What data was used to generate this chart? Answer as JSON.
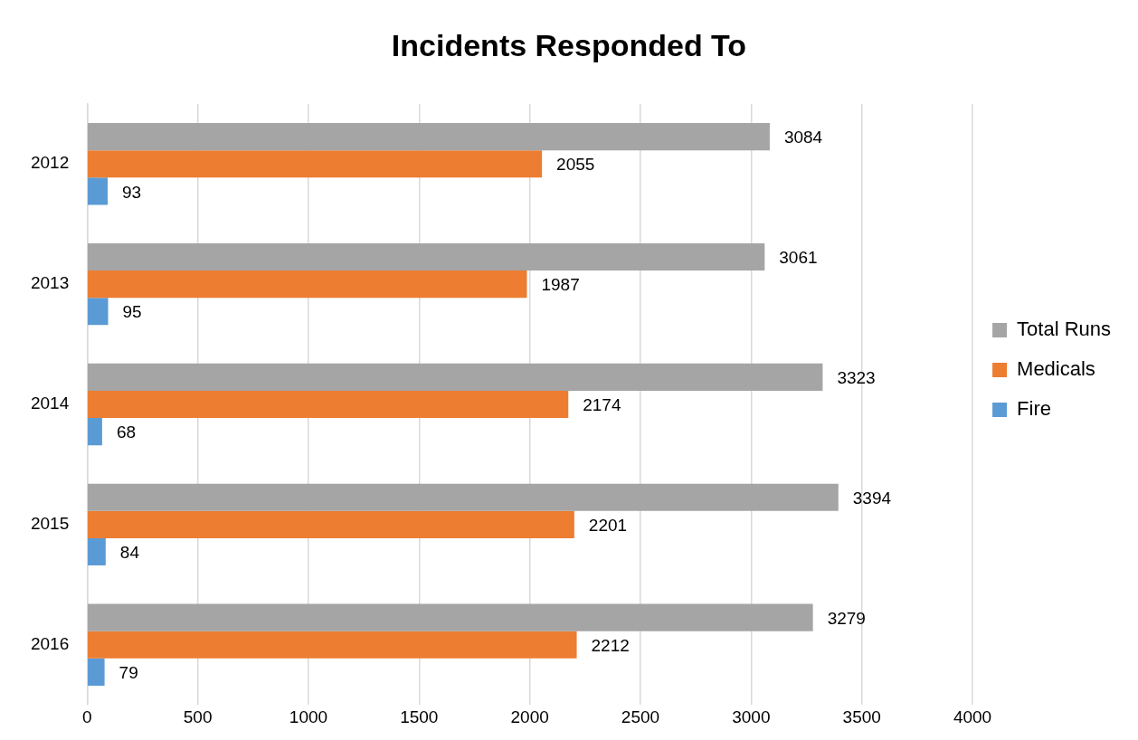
{
  "chart_data": {
    "type": "bar",
    "orientation": "horizontal",
    "title": "Incidents Responded To",
    "categories": [
      "2012",
      "2013",
      "2014",
      "2015",
      "2016"
    ],
    "series": [
      {
        "name": "Total Runs",
        "color": "#a5a5a5",
        "values": [
          3084,
          3061,
          3323,
          3394,
          3279
        ]
      },
      {
        "name": "Medicals",
        "color": "#ed7d31",
        "values": [
          2055,
          1987,
          2174,
          2201,
          2212
        ]
      },
      {
        "name": "Fire",
        "color": "#5b9bd5",
        "values": [
          93,
          95,
          68,
          84,
          79
        ]
      }
    ],
    "xlim": [
      0,
      4000
    ],
    "xticks": [
      0,
      500,
      1000,
      1500,
      2000,
      2500,
      3000,
      3500,
      4000
    ],
    "grid": "x",
    "legend": "right",
    "data_labels": true
  }
}
